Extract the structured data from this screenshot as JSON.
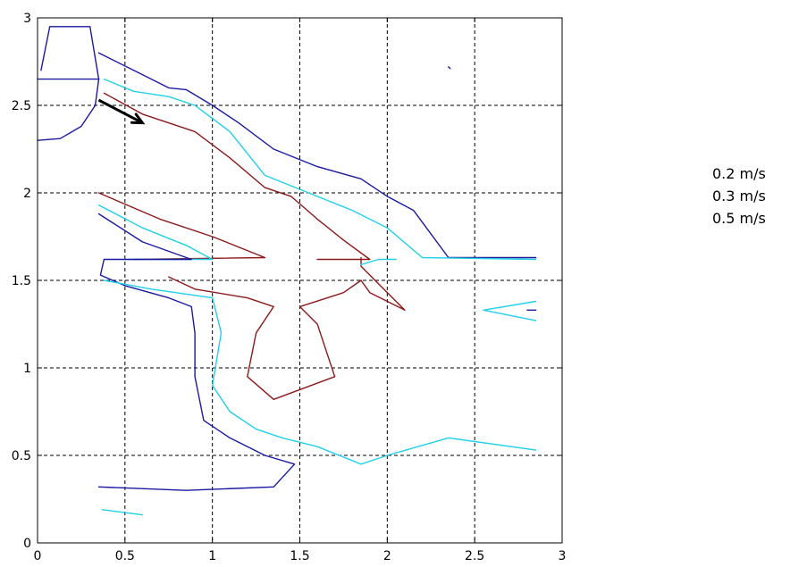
{
  "chart_data": {
    "type": "line",
    "title": "",
    "xlabel": "",
    "ylabel": "",
    "xlim": [
      0,
      3
    ],
    "ylim": [
      0,
      3
    ],
    "x_ticks": [
      "0",
      "0.5",
      "1",
      "1.5",
      "2",
      "2.5",
      "3"
    ],
    "y_ticks": [
      "0",
      "0.5",
      "1",
      "1.5",
      "2",
      "2.5",
      "3"
    ],
    "grid": true,
    "legend_position": "right",
    "legend_entries": [
      "0.2 m/s",
      "0.3 m/s",
      "0.5 m/s"
    ],
    "colors": {
      "dark_blue": "#1a1aa0",
      "cyan": "#22d0e8",
      "dark_red": "#8b1a1a",
      "arrow": "#000000"
    },
    "series": [
      {
        "color": "dark_blue",
        "points": [
          [
            0.35,
            2.8
          ],
          [
            0.55,
            2.7
          ],
          [
            0.75,
            2.6
          ],
          [
            0.85,
            2.59
          ],
          [
            1.0,
            2.5
          ],
          [
            1.15,
            2.4
          ],
          [
            1.35,
            2.25
          ],
          [
            1.6,
            2.15
          ],
          [
            1.85,
            2.08
          ],
          [
            2.0,
            1.98
          ],
          [
            2.15,
            1.9
          ],
          [
            2.35,
            1.63
          ],
          [
            2.85,
            1.63
          ]
        ]
      },
      {
        "color": "cyan",
        "points": [
          [
            0.38,
            2.65
          ],
          [
            0.55,
            2.58
          ],
          [
            0.75,
            2.55
          ],
          [
            0.9,
            2.5
          ],
          [
            1.1,
            2.35
          ],
          [
            1.3,
            2.1
          ],
          [
            1.55,
            2.0
          ],
          [
            1.8,
            1.9
          ],
          [
            2.0,
            1.8
          ],
          [
            2.2,
            1.63
          ],
          [
            2.85,
            1.62
          ]
        ]
      },
      {
        "color": "dark_red",
        "points": [
          [
            0.38,
            2.57
          ],
          [
            0.6,
            2.45
          ],
          [
            0.9,
            2.35
          ],
          [
            1.1,
            2.2
          ],
          [
            1.3,
            2.03
          ],
          [
            1.45,
            1.98
          ],
          [
            1.6,
            1.85
          ],
          [
            1.75,
            1.73
          ],
          [
            1.9,
            1.62
          ],
          [
            1.6,
            1.62
          ]
        ]
      },
      {
        "color": "dark_red",
        "points": [
          [
            0.35,
            2.0
          ],
          [
            0.7,
            1.85
          ],
          [
            1.0,
            1.75
          ],
          [
            1.3,
            1.63
          ],
          [
            0.55,
            1.62
          ]
        ]
      },
      {
        "color": "cyan",
        "points": [
          [
            0.35,
            1.93
          ],
          [
            0.6,
            1.8
          ],
          [
            0.85,
            1.7
          ],
          [
            1.0,
            1.62
          ],
          [
            0.5,
            1.62
          ]
        ]
      },
      {
        "color": "dark_blue",
        "points": [
          [
            0.35,
            1.88
          ],
          [
            0.6,
            1.72
          ],
          [
            0.88,
            1.62
          ],
          [
            0.38,
            1.62
          ],
          [
            0.36,
            1.53
          ],
          [
            0.5,
            1.47
          ],
          [
            0.75,
            1.4
          ],
          [
            0.88,
            1.35
          ],
          [
            0.9,
            1.2
          ],
          [
            0.9,
            0.95
          ],
          [
            0.95,
            0.7
          ],
          [
            1.1,
            0.6
          ],
          [
            1.3,
            0.5
          ],
          [
            1.47,
            0.45
          ],
          [
            1.35,
            0.32
          ],
          [
            0.85,
            0.3
          ],
          [
            0.35,
            0.32
          ]
        ]
      },
      {
        "color": "cyan",
        "points": [
          [
            0.38,
            1.5
          ],
          [
            0.65,
            1.45
          ],
          [
            1.0,
            1.4
          ],
          [
            1.05,
            1.2
          ],
          [
            1.0,
            0.9
          ],
          [
            1.1,
            0.75
          ],
          [
            1.25,
            0.65
          ],
          [
            1.4,
            0.6
          ],
          [
            1.6,
            0.55
          ],
          [
            1.85,
            0.45
          ],
          [
            2.0,
            0.5
          ],
          [
            2.35,
            0.6
          ],
          [
            2.85,
            0.53
          ]
        ]
      },
      {
        "color": "dark_red",
        "points": [
          [
            0.75,
            1.52
          ],
          [
            0.9,
            1.45
          ],
          [
            1.2,
            1.4
          ],
          [
            1.35,
            1.35
          ],
          [
            1.25,
            1.2
          ],
          [
            1.2,
            0.95
          ],
          [
            1.35,
            0.82
          ],
          [
            1.7,
            0.95
          ],
          [
            1.6,
            1.25
          ],
          [
            1.5,
            1.35
          ],
          [
            1.75,
            1.43
          ],
          [
            1.85,
            1.5
          ],
          [
            1.9,
            1.43
          ],
          [
            2.1,
            1.33
          ],
          [
            1.85,
            1.58
          ],
          [
            1.85,
            1.63
          ]
        ]
      },
      {
        "color": "cyan",
        "points": [
          [
            1.85,
            1.59
          ],
          [
            1.95,
            1.62
          ],
          [
            2.05,
            1.62
          ]
        ]
      },
      {
        "color": "cyan",
        "points": [
          [
            2.55,
            1.33
          ],
          [
            2.85,
            1.38
          ]
        ]
      },
      {
        "color": "cyan",
        "points": [
          [
            2.55,
            1.33
          ],
          [
            2.85,
            1.27
          ]
        ]
      },
      {
        "color": "dark_blue",
        "points": [
          [
            2.8,
            1.33
          ],
          [
            2.85,
            1.33
          ]
        ]
      },
      {
        "color": "cyan",
        "points": [
          [
            0.37,
            0.19
          ],
          [
            0.6,
            0.16
          ]
        ]
      },
      {
        "color": "dark_blue",
        "points": [
          [
            0.0,
            2.65
          ],
          [
            0.35,
            2.65
          ]
        ]
      },
      {
        "color": "dark_blue",
        "points": [
          [
            0.02,
            2.7
          ],
          [
            0.07,
            2.95
          ],
          [
            0.3,
            2.95
          ],
          [
            0.35,
            2.65
          ]
        ]
      },
      {
        "color": "dark_blue",
        "points": [
          [
            0.35,
            2.65
          ],
          [
            0.33,
            2.5
          ],
          [
            0.25,
            2.38
          ],
          [
            0.13,
            2.31
          ],
          [
            0.0,
            2.3
          ]
        ]
      },
      {
        "color": "dark_blue",
        "points": [
          [
            2.35,
            2.72
          ],
          [
            2.36,
            2.71
          ]
        ]
      }
    ],
    "arrow": {
      "from": [
        0.35,
        2.53
      ],
      "to": [
        0.6,
        2.4
      ]
    }
  },
  "legend": {
    "items": [
      "0.2 m/s",
      "0.3 m/s",
      "0.5 m/s"
    ]
  }
}
